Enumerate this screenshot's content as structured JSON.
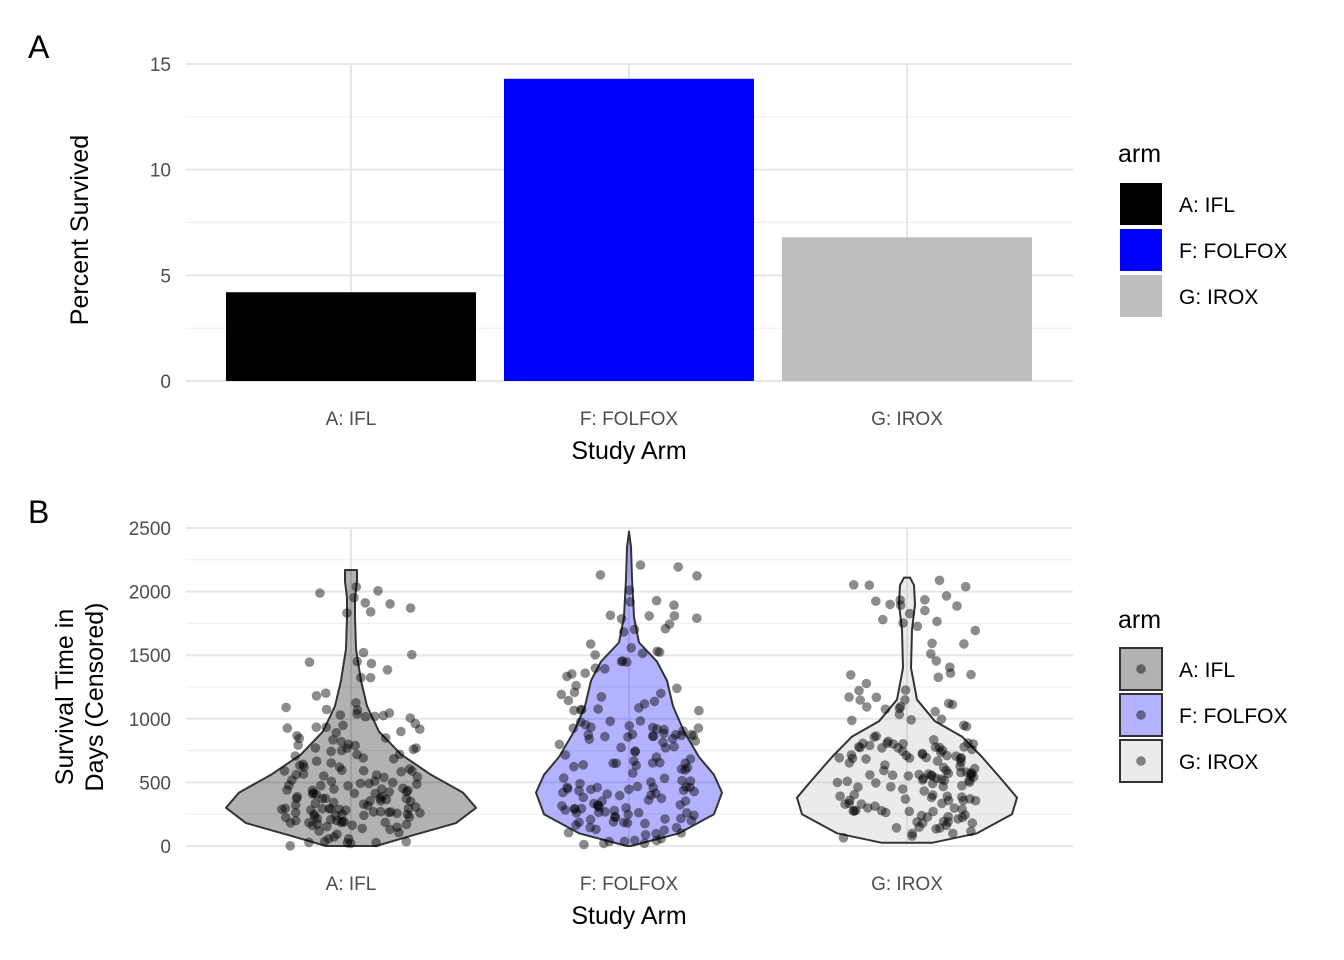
{
  "chart_data": [
    {
      "panel": "A",
      "type": "bar",
      "categories": [
        "A: IFL",
        "F: FOLFOX",
        "G: IROX"
      ],
      "values": [
        4.2,
        14.3,
        6.8
      ],
      "colors": [
        "#000000",
        "#0000ff",
        "#bebebe"
      ],
      "xlabel": "Study Arm",
      "ylabel": "Percent Survived",
      "ylim": [
        0,
        15
      ],
      "yticks": [
        "0",
        "5",
        "10",
        "15"
      ],
      "grid": true,
      "legend": {
        "title": "arm",
        "position": "right",
        "entries": [
          "A: IFL",
          "F: FOLFOX",
          "G: IROX"
        ]
      }
    },
    {
      "panel": "B",
      "type": "violin",
      "categories": [
        "A: IFL",
        "F: FOLFOX",
        "G: IROX"
      ],
      "fill_colors": [
        "#000000",
        "#0000ff",
        "#bebebe"
      ],
      "fill_alpha": 0.3,
      "xlabel": "Study Arm",
      "ylabel": [
        "Survival Time in",
        "Days (Censored)"
      ],
      "ylim": [
        0,
        2500
      ],
      "yticks": [
        "0",
        "500",
        "1000",
        "1500",
        "2000",
        "2500"
      ],
      "grid": true,
      "overlay": "jittered points (black, semi-transparent)",
      "max_days": [
        2170,
        2470,
        2110
      ],
      "median_days_approx": [
        400,
        520,
        420
      ],
      "legend": {
        "title": "arm",
        "position": "right",
        "entries": [
          "A: IFL",
          "F: FOLFOX",
          "G: IROX"
        ]
      }
    }
  ]
}
